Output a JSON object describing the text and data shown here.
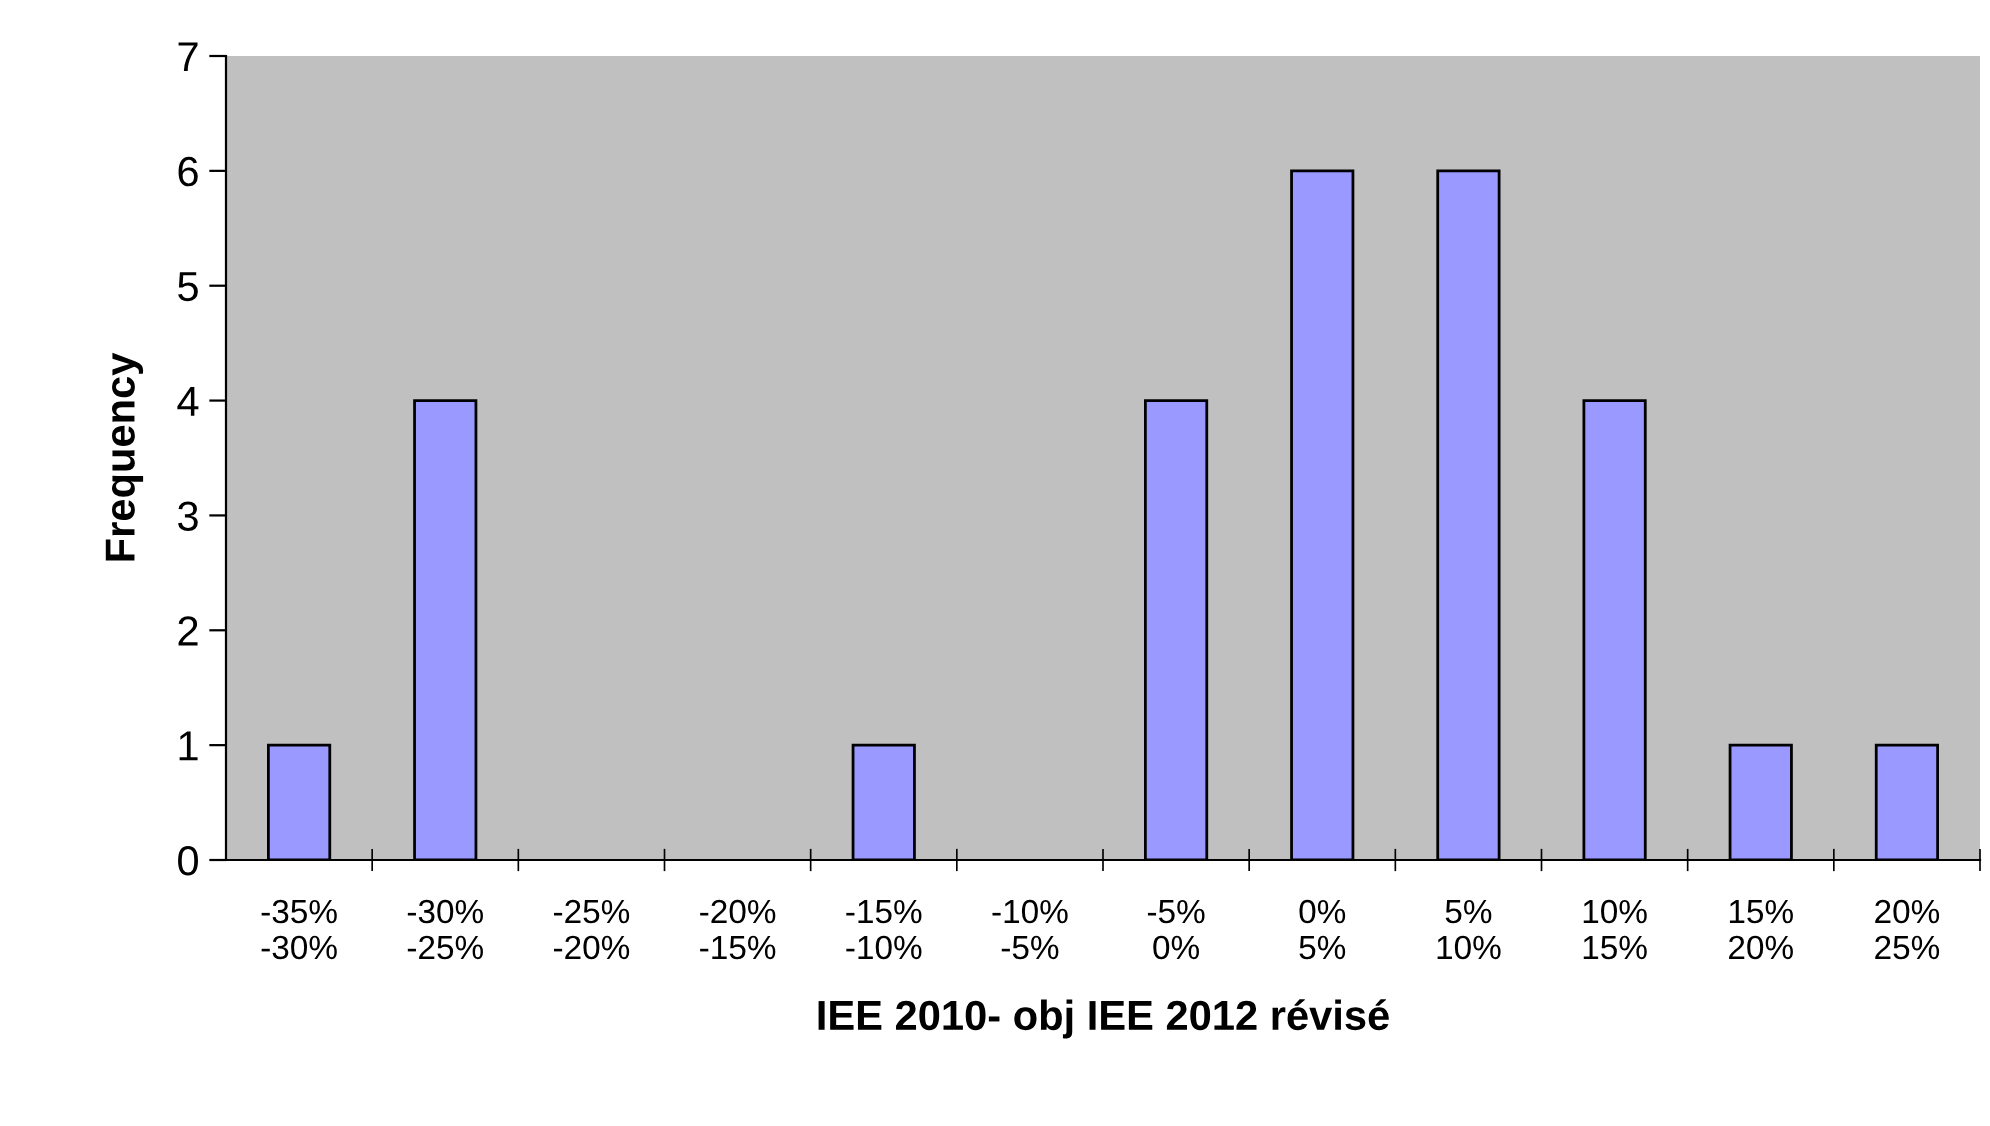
{
  "chart_data": {
    "type": "bar",
    "xlabel": "IEE 2010- obj IEE 2012 révisé",
    "ylabel": "Frequency",
    "categories": [
      "-35%\n-30%",
      "-30%\n-25%",
      "-25%\n-20%",
      "-20%\n-15%",
      "-15%\n-10%",
      "-10%\n-5%",
      "-5%\n0%",
      "0%\n5%",
      "5%\n10%",
      "10%\n15%",
      "15%\n20%",
      "20%\n25%"
    ],
    "values": [
      1,
      4,
      0,
      0,
      1,
      0,
      4,
      6,
      6,
      4,
      1,
      1
    ],
    "color": "#9999ff",
    "ylim": [
      0,
      7
    ],
    "yticks": [
      0,
      1,
      2,
      3,
      4,
      5,
      6,
      7
    ],
    "grid": false,
    "legend": false
  }
}
